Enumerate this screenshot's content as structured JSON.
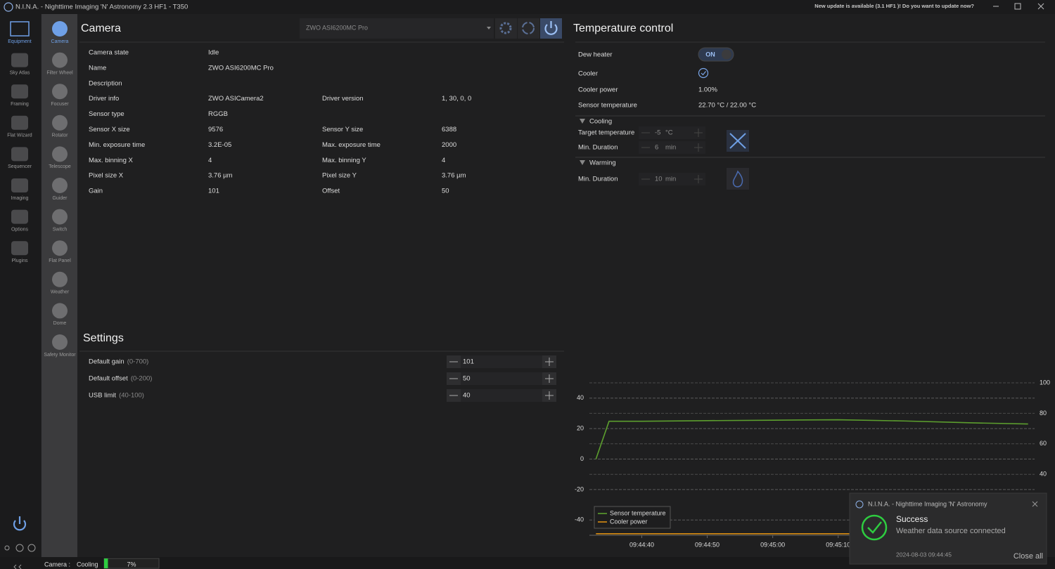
{
  "titlebar": {
    "title": "N.I.N.A. - Nighttime Imaging 'N' Astronomy 2.3 HF1   -   T350",
    "update_notice": "New update is available (3.1 HF1 )! Do you want to update now?"
  },
  "sidebar": [
    "Equipment",
    "Sky Atlas",
    "Framing",
    "Flat Wizard",
    "Sequencer",
    "Imaging",
    "Options",
    "Plugins"
  ],
  "equipment_tabs": [
    "Camera",
    "Filter Wheel",
    "Focuser",
    "Rotator",
    "Telescope",
    "Guider",
    "Switch",
    "Flat Panel",
    "Weather",
    "Dome",
    "Safety Monitor"
  ],
  "camera": {
    "title": "Camera",
    "device": "ZWO ASI6200MC Pro",
    "rows": [
      {
        "label": "Camera state",
        "value": "Idle"
      },
      {
        "label": "Name",
        "value": "ZWO ASI6200MC Pro"
      },
      {
        "label": "Description"
      },
      {
        "label": "Driver info",
        "value": "ZWO ASICamera2",
        "label2": "Driver version",
        "value2": "1, 30, 0, 0"
      },
      {
        "label": "Sensor type",
        "value": "RGGB"
      },
      {
        "label": "Sensor X size",
        "value": "9576",
        "label2": "Sensor Y size",
        "value2": "6388"
      },
      {
        "label": "Min. exposure time",
        "value": "3.2E-05",
        "label2": "Max. exposure time",
        "value2": "2000"
      },
      {
        "label": "Max. binning X",
        "value": "4",
        "label2": "Max. binning Y",
        "value2": "4"
      },
      {
        "label": "Pixel size X",
        "value": "3.76 µm",
        "label2": "Pixel size Y",
        "value2": "3.76 µm"
      },
      {
        "label": "Gain",
        "value": "101",
        "label2": "Offset",
        "value2": "50"
      }
    ]
  },
  "settings": {
    "title": "Settings",
    "rows": [
      {
        "label": "Default gain",
        "range": "(0-700)",
        "value": "101"
      },
      {
        "label": "Default offset",
        "range": "(0-200)",
        "value": "50"
      },
      {
        "label": "USB limit",
        "range": "(40-100)",
        "value": "40"
      }
    ]
  },
  "temperature": {
    "title": "Temperature control",
    "dew_heater": {
      "label": "Dew heater",
      "state": "ON"
    },
    "cooler": "Cooler",
    "cooler_power": {
      "label": "Cooler power",
      "value": "1.00%"
    },
    "sensor_temperature": {
      "label": "Sensor temperature",
      "value": "22.70 °C /  22.00 °C"
    },
    "cooling": {
      "title": "Cooling",
      "target_label": "Target temperature",
      "target_value": "-5",
      "target_unit": "°C",
      "duration_label": "Min. Duration",
      "duration_value": "6",
      "duration_unit": "min"
    },
    "warming": {
      "title": "Warming",
      "duration_label": "Min. Duration",
      "duration_value": "10",
      "duration_unit": "min"
    }
  },
  "chart_data": {
    "type": "line",
    "x": [
      "09:44:33",
      "09:44:35",
      "09:44:40",
      "09:44:50",
      "09:45:00",
      "09:45:10",
      "09:45:20",
      "09:45:30",
      "09:45:39"
    ],
    "series": [
      {
        "name": "Sensor temperature",
        "color": "#5c9e2e",
        "values": [
          0,
          24.8,
          24.8,
          25.2,
          25.5,
          25.8,
          25,
          23.8,
          23
        ]
      },
      {
        "name": "Cooler power",
        "color": "#d98c12",
        "axis": "y2",
        "values": [
          1,
          1,
          1,
          1,
          1,
          1,
          1,
          1,
          1
        ]
      }
    ],
    "xlim": [
      "09:44:32",
      "09:45:40"
    ],
    "xticks": [
      "09:44:40",
      "09:44:50",
      "09:45:00",
      "09:45:10"
    ],
    "ylim": [
      -50,
      50
    ],
    "yticks": [
      -40,
      -20,
      0,
      20,
      40
    ],
    "y2lim": [
      0,
      100
    ],
    "y2ticks": [
      40,
      60,
      80,
      100
    ],
    "grid": true,
    "legend": "lower left"
  },
  "toast": {
    "app": "N.I.N.A. - Nighttime Imaging 'N' Astronomy",
    "title": "Success",
    "message": "Weather data source connected",
    "timestamp": "2024-08-03 09:44:45",
    "close_all": "Close all"
  },
  "statusbar": {
    "source": "Camera :",
    "status": "Cooling",
    "progress": {
      "value": 7,
      "label": "7%"
    }
  }
}
